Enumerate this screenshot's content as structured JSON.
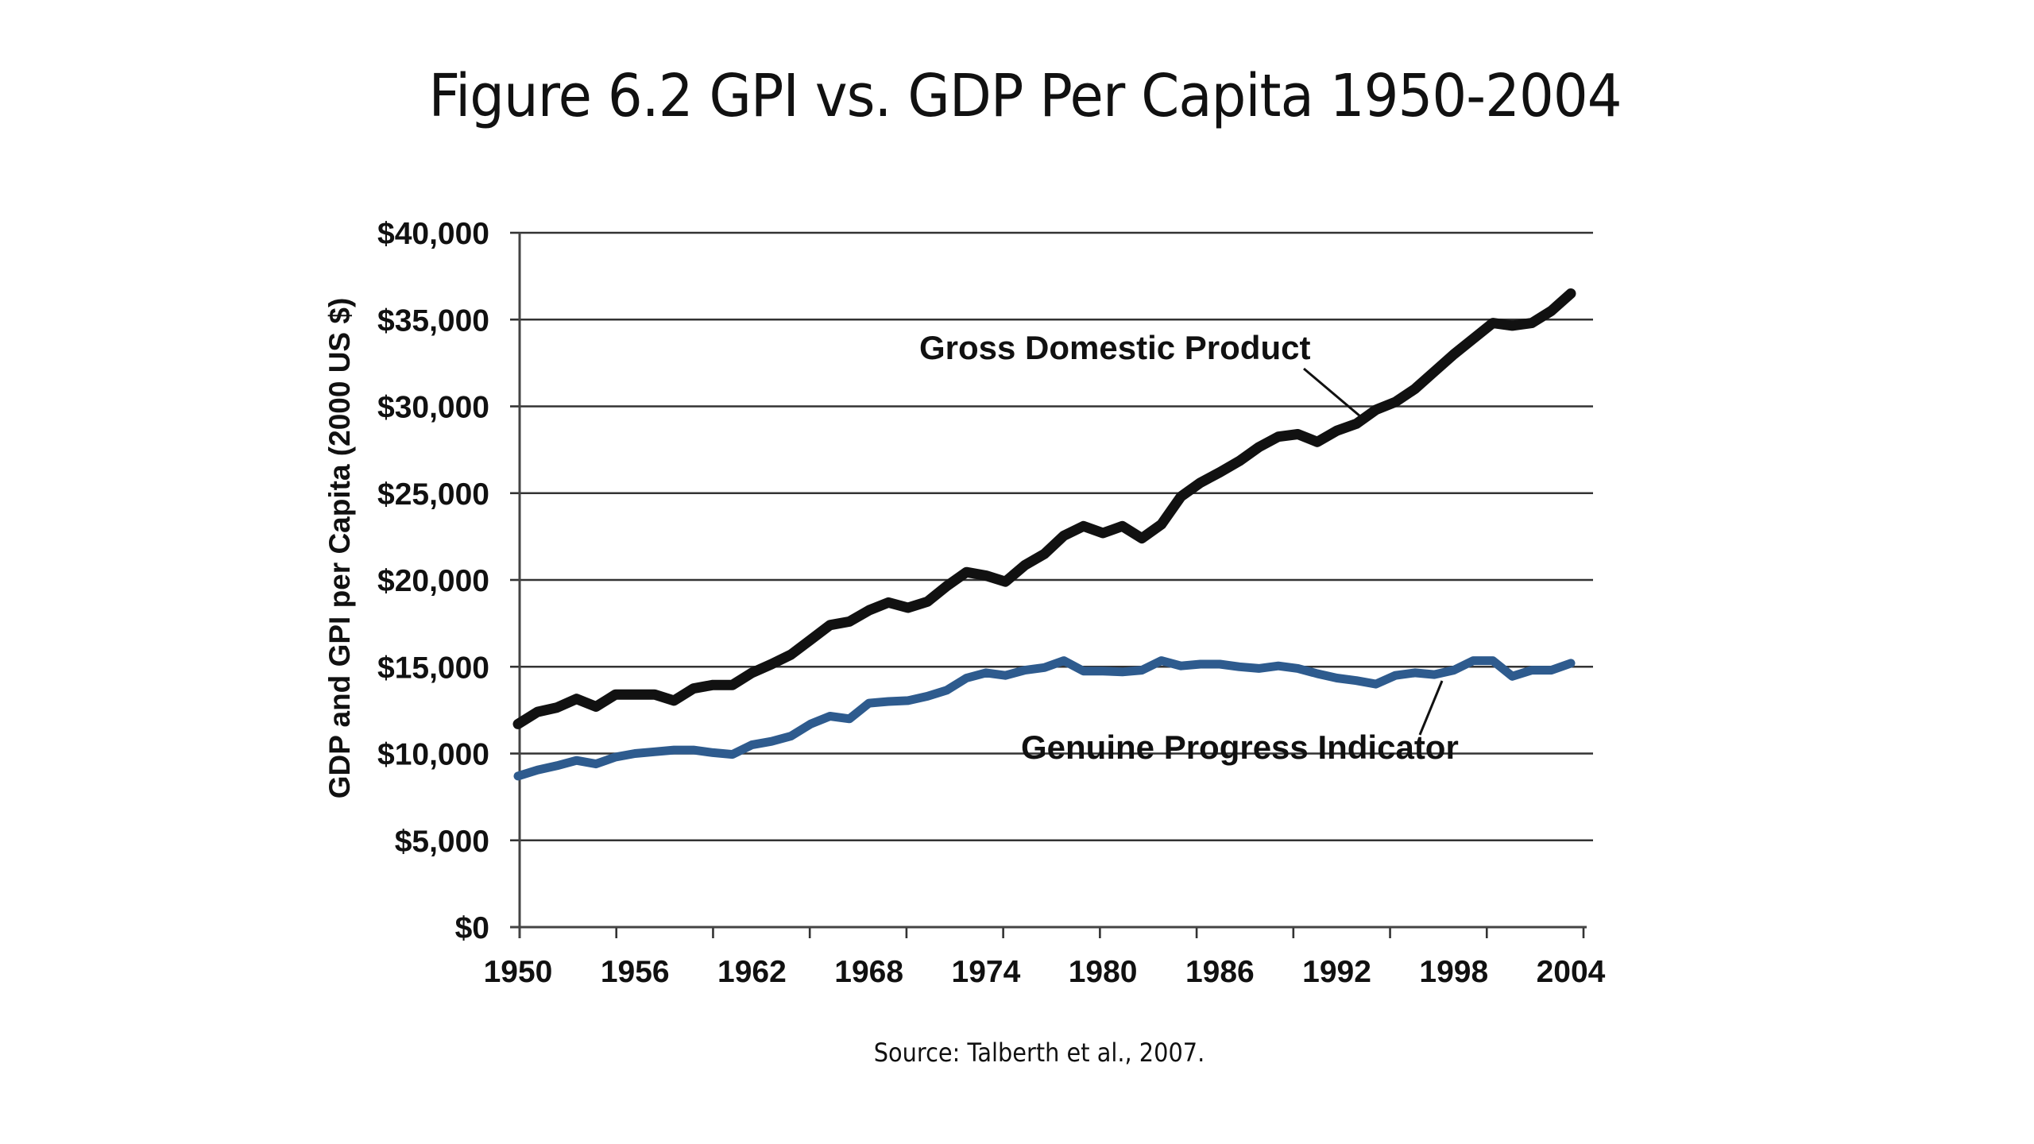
{
  "slide": {
    "title": "Figure 6.2 GPI vs. GDP Per Capita 1950-2004",
    "source": "Source: Talberth et al., 2007."
  },
  "chart_data": {
    "type": "line",
    "title": "Figure 6.2 GPI vs. GDP Per Capita 1950-2004",
    "xlabel": "",
    "ylabel": "GDP and GPI per Capita (2000 US $)",
    "xlim": [
      1950,
      2004
    ],
    "ylim": [
      0,
      40000
    ],
    "x_tick_labels": [
      "1950",
      "1956",
      "1962",
      "1968",
      "1974",
      "1980",
      "1986",
      "1992",
      "1998",
      "2004"
    ],
    "y_ticks": [
      0,
      5000,
      10000,
      15000,
      20000,
      25000,
      30000,
      35000,
      40000
    ],
    "y_tick_labels": [
      "$0",
      "$5,000",
      "$10,000",
      "$15,000",
      "$20,000",
      "$25,000",
      "$30,000",
      "$35,000",
      "$40,000"
    ],
    "grid": "horizontal",
    "legend": "none (direct labels)",
    "x": [
      1950,
      1951,
      1952,
      1953,
      1954,
      1955,
      1956,
      1957,
      1958,
      1959,
      1960,
      1961,
      1962,
      1963,
      1964,
      1965,
      1966,
      1967,
      1968,
      1969,
      1970,
      1971,
      1972,
      1973,
      1974,
      1975,
      1976,
      1977,
      1978,
      1979,
      1980,
      1981,
      1982,
      1983,
      1984,
      1985,
      1986,
      1987,
      1988,
      1989,
      1990,
      1991,
      1992,
      1993,
      1994,
      1995,
      1996,
      1997,
      1998,
      1999,
      2000,
      2001,
      2002,
      2003,
      2004
    ],
    "series": [
      {
        "name": "Gross Domestic Product",
        "color": "#111111",
        "values": [
          11700,
          12400,
          12650,
          13150,
          12700,
          13400,
          13400,
          13400,
          13050,
          13750,
          13950,
          13950,
          14650,
          15150,
          15700,
          16550,
          17400,
          17600,
          18250,
          18700,
          18400,
          18750,
          19650,
          20450,
          20250,
          19900,
          20850,
          21500,
          22550,
          23100,
          22700,
          23100,
          22400,
          23200,
          24800,
          25600,
          26200,
          26850,
          27650,
          28250,
          28400,
          27950,
          28600,
          29000,
          29800,
          30250,
          31000,
          32000,
          33000,
          33900,
          34800,
          34650,
          34800,
          35500,
          36500
        ]
      },
      {
        "name": "Genuine Progress Indicator",
        "color": "#2e5b8e",
        "values": [
          8700,
          9050,
          9300,
          9600,
          9400,
          9800,
          10000,
          10100,
          10200,
          10200,
          10050,
          9950,
          10500,
          10700,
          11000,
          11700,
          12150,
          12000,
          12900,
          13000,
          13050,
          13300,
          13650,
          14350,
          14650,
          14500,
          14800,
          14950,
          15350,
          14750,
          14750,
          14700,
          14800,
          15350,
          15050,
          15150,
          15150,
          15000,
          14900,
          15050,
          14900,
          14600,
          14350,
          14200,
          14000,
          14500,
          14650,
          14550,
          14800,
          15350,
          15350,
          14450,
          14800,
          14800,
          15200
        ]
      }
    ],
    "annotations": [
      {
        "text": "Gross Domestic Product",
        "points_to": {
          "series": "Gross Domestic Product",
          "x": 1993
        }
      },
      {
        "text": "Genuine Progress Indicator",
        "points_to": {
          "series": "Genuine Progress Indicator",
          "x": 1997
        }
      }
    ],
    "source": "Source: Talberth et al., 2007."
  }
}
